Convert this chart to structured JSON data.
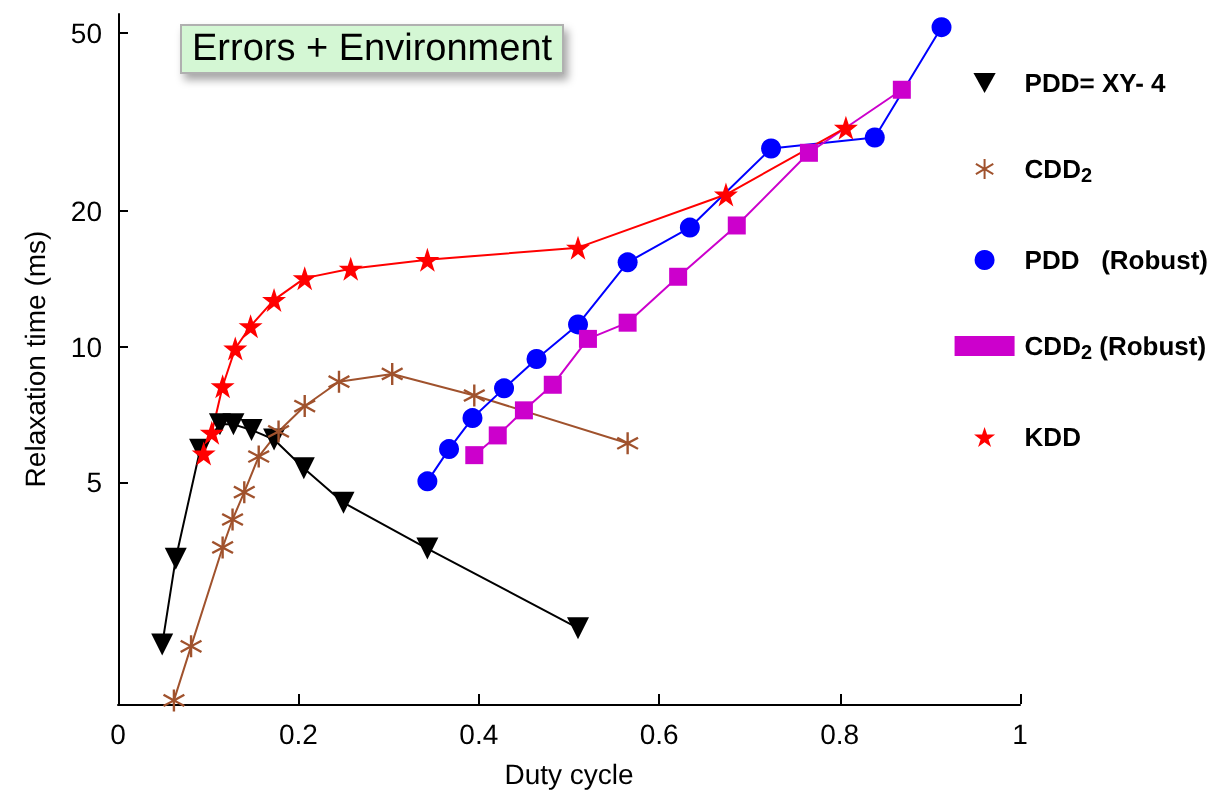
{
  "chart_data": {
    "type": "line",
    "title": "Errors + Environment",
    "xlabel": "Duty cycle",
    "ylabel": "Relaxation time (ms)",
    "log": "y",
    "xlim": [
      0,
      1
    ],
    "xticks": [
      0,
      0.2,
      0.4,
      0.6,
      0.8,
      1
    ],
    "ylim": [
      1.6,
      55
    ],
    "yticks": [
      5,
      10,
      20,
      50
    ],
    "grid": false,
    "legend": "right",
    "series": [
      {
        "name": "PDD= XY- 4",
        "color": "#000000",
        "marker": "triangle",
        "x": [
          0.049,
          0.064,
          0.091,
          0.113,
          0.128,
          0.148,
          0.173,
          0.206,
          0.25,
          0.343,
          0.51
        ],
        "values": [
          2.17,
          3.37,
          5.89,
          6.71,
          6.71,
          6.52,
          6.21,
          5.36,
          4.49,
          3.55,
          2.36
        ]
      },
      {
        "name": "CDD$_{2}$",
        "color": "#a0522d",
        "marker": "cross",
        "x": [
          0.062,
          0.081,
          0.116,
          0.127,
          0.14,
          0.156,
          0.178,
          0.207,
          0.245,
          0.304,
          0.395,
          0.565
        ],
        "values": [
          1.63,
          2.15,
          3.57,
          4.12,
          4.74,
          5.69,
          6.47,
          7.37,
          8.35,
          8.69,
          7.78,
          6.09
        ]
      },
      {
        "name": "PDD   (Robust)",
        "color": "#0000ff",
        "marker": "circle",
        "x": [
          0.343,
          0.367,
          0.393,
          0.428,
          0.464,
          0.51,
          0.565,
          0.634,
          0.724,
          0.839,
          0.913
        ],
        "values": [
          5.01,
          5.91,
          6.93,
          8.07,
          9.38,
          11.2,
          15.4,
          18.4,
          27.6,
          29.2,
          51.4
        ]
      },
      {
        "name": "CDD$_{2}$ (Robust)",
        "color": "#cc00cc",
        "marker": "square",
        "x": [
          0.395,
          0.421,
          0.45,
          0.482,
          0.521,
          0.565,
          0.621,
          0.686,
          0.766,
          0.869
        ],
        "values": [
          5.73,
          6.34,
          7.21,
          8.22,
          10.4,
          11.3,
          14.3,
          18.6,
          27.0,
          37.3
        ]
      },
      {
        "name": "KDD",
        "color": "#ff0000",
        "marker": "star",
        "x": [
          0.095,
          0.104,
          0.116,
          0.13,
          0.147,
          0.173,
          0.207,
          0.258,
          0.343,
          0.51,
          0.674,
          0.807
        ],
        "values": [
          5.78,
          6.43,
          8.16,
          9.9,
          11.1,
          12.7,
          14.2,
          14.9,
          15.6,
          16.6,
          21.8,
          30.7
        ]
      }
    ]
  }
}
